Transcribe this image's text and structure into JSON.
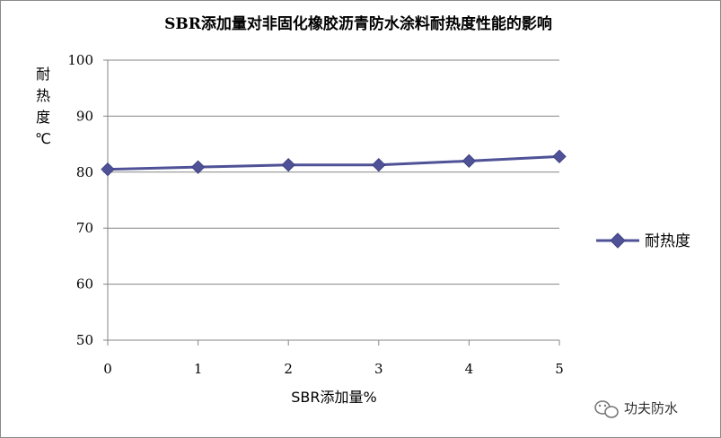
{
  "chart_data": {
    "type": "line",
    "title": "SBR添加量对非固化橡胶沥青防水涂料耐热度性能的影响",
    "xlabel": "SBR添加量%",
    "ylabel": [
      "耐",
      "热",
      "度",
      "℃"
    ],
    "x": [
      0,
      1,
      2,
      3,
      4,
      5
    ],
    "xticks": [
      "0",
      "1",
      "2",
      "3",
      "4",
      "5"
    ],
    "yticks": [
      "50",
      "60",
      "70",
      "80",
      "90",
      "100"
    ],
    "ylim": [
      50,
      100
    ],
    "xlim": [
      0,
      5
    ],
    "grid": true,
    "legend": "right",
    "series": [
      {
        "name": "耐热度",
        "values": [
          80.5,
          80.9,
          81.3,
          81.3,
          82.0,
          82.8
        ],
        "color": "#4f5296",
        "marker": "diamond"
      }
    ]
  },
  "watermark": {
    "text": "功夫防水",
    "icon": "wechat-icon"
  }
}
